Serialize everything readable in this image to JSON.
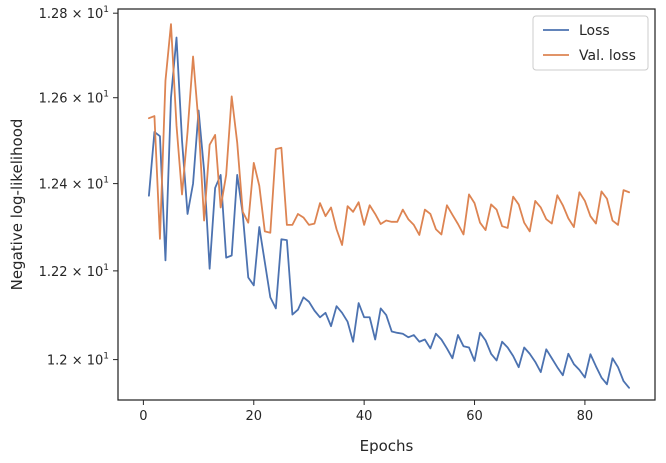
{
  "chart_data": {
    "type": "line",
    "xlabel": "Epochs",
    "ylabel": "Negative log-likelihood",
    "yscale": "log",
    "xlim": [
      -4.6,
      92.7
    ],
    "ylim": [
      11.91,
      12.81
    ],
    "xticks": [
      0,
      20,
      40,
      60,
      80
    ],
    "xtick_labels": [
      "0",
      "20",
      "40",
      "60",
      "80"
    ],
    "yticks": [
      12.0,
      12.2,
      12.4,
      12.6,
      12.8
    ],
    "ytick_labels": [
      {
        "mantissa": "1.2",
        "exp": "1"
      },
      {
        "mantissa": "1.22",
        "exp": "1"
      },
      {
        "mantissa": "1.24",
        "exp": "1"
      },
      {
        "mantissa": "1.26",
        "exp": "1"
      },
      {
        "mantissa": "1.28",
        "exp": "1"
      }
    ],
    "grid": false,
    "legend_position": "top-right",
    "series": [
      {
        "name": "Loss",
        "color": "#4c72b0",
        "x": [
          1,
          2,
          3,
          4,
          5,
          6,
          7,
          8,
          9,
          10,
          11,
          12,
          13,
          14,
          15,
          16,
          17,
          18,
          19,
          20,
          21,
          22,
          23,
          24,
          25,
          26,
          27,
          28,
          29,
          30,
          31,
          32,
          33,
          34,
          35,
          36,
          37,
          38,
          39,
          40,
          41,
          42,
          43,
          44,
          45,
          46,
          47,
          48,
          49,
          50,
          51,
          52,
          53,
          54,
          55,
          56,
          57,
          58,
          59,
          60,
          61,
          62,
          63,
          64,
          65,
          66,
          67,
          68,
          69,
          70,
          71,
          72,
          73,
          74,
          75,
          76,
          77,
          78,
          79,
          80,
          81,
          82,
          83,
          84,
          85,
          86,
          87,
          88
        ],
        "y": [
          12.372,
          12.52,
          12.51,
          12.224,
          12.6,
          12.742,
          12.5,
          12.33,
          12.4,
          12.57,
          12.43,
          12.205,
          12.39,
          12.42,
          12.23,
          12.235,
          12.42,
          12.33,
          12.185,
          12.167,
          12.3,
          12.22,
          12.14,
          12.115,
          12.272,
          12.27,
          12.101,
          12.112,
          12.14,
          12.13,
          12.11,
          12.095,
          12.105,
          12.075,
          12.12,
          12.105,
          12.085,
          12.04,
          12.127,
          12.095,
          12.095,
          12.045,
          12.115,
          12.1,
          12.063,
          12.06,
          12.058,
          12.05,
          12.055,
          12.04,
          12.045,
          12.025,
          12.058,
          12.045,
          12.025,
          12.003,
          12.055,
          12.03,
          12.027,
          11.997,
          12.06,
          12.043,
          12.013,
          11.998,
          12.04,
          12.027,
          12.008,
          11.983,
          12.027,
          12.013,
          11.995,
          11.972,
          12.023,
          12.003,
          11.983,
          11.965,
          12.013,
          11.99,
          11.977,
          11.96,
          12.012,
          11.985,
          11.96,
          11.945,
          12.003,
          11.983,
          11.952,
          11.937
        ]
      },
      {
        "name": "Val. loss",
        "color": "#dd8452",
        "x": [
          1,
          2,
          3,
          4,
          5,
          6,
          7,
          8,
          9,
          10,
          11,
          12,
          13,
          14,
          15,
          16,
          17,
          18,
          19,
          20,
          21,
          22,
          23,
          24,
          25,
          26,
          27,
          28,
          29,
          30,
          31,
          32,
          33,
          34,
          35,
          36,
          37,
          38,
          39,
          40,
          41,
          42,
          43,
          44,
          45,
          46,
          47,
          48,
          49,
          50,
          51,
          52,
          53,
          54,
          55,
          56,
          57,
          58,
          59,
          60,
          61,
          62,
          63,
          64,
          65,
          66,
          67,
          68,
          69,
          70,
          71,
          72,
          73,
          74,
          75,
          76,
          77,
          78,
          79,
          80,
          81,
          82,
          83,
          84,
          85,
          86,
          87,
          88
        ],
        "y": [
          12.552,
          12.557,
          12.273,
          12.64,
          12.774,
          12.535,
          12.375,
          12.52,
          12.697,
          12.54,
          12.315,
          12.49,
          12.513,
          12.345,
          12.42,
          12.603,
          12.495,
          12.335,
          12.31,
          12.448,
          12.395,
          12.29,
          12.287,
          12.48,
          12.483,
          12.305,
          12.305,
          12.33,
          12.322,
          12.305,
          12.308,
          12.355,
          12.325,
          12.345,
          12.295,
          12.259,
          12.348,
          12.335,
          12.357,
          12.305,
          12.35,
          12.33,
          12.307,
          12.315,
          12.312,
          12.312,
          12.34,
          12.318,
          12.305,
          12.282,
          12.34,
          12.33,
          12.295,
          12.283,
          12.35,
          12.328,
          12.307,
          12.283,
          12.375,
          12.355,
          12.31,
          12.293,
          12.352,
          12.34,
          12.302,
          12.298,
          12.37,
          12.352,
          12.31,
          12.29,
          12.36,
          12.345,
          12.318,
          12.308,
          12.373,
          12.35,
          12.32,
          12.3,
          12.38,
          12.36,
          12.325,
          12.308,
          12.382,
          12.365,
          12.315,
          12.305,
          12.385,
          12.38
        ]
      }
    ]
  }
}
